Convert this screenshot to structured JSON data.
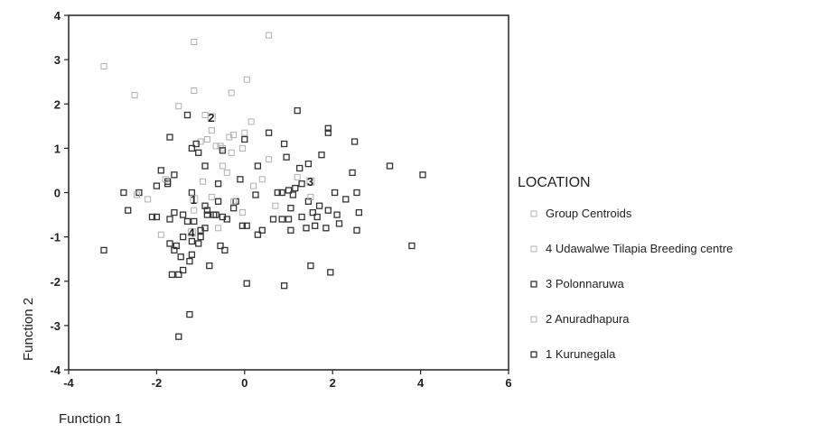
{
  "chart_data": {
    "type": "scatter",
    "xlabel": "Function 1",
    "ylabel": "Function 2",
    "xlim": [
      -4,
      6
    ],
    "ylim": [
      -4,
      4
    ],
    "xticks": [
      "-4",
      "-2",
      "0",
      "2",
      "4",
      "6"
    ],
    "yticks": [
      "4",
      "3",
      "2",
      "1",
      "0",
      "-1",
      "-2",
      "-3",
      "-4"
    ],
    "legend": {
      "title": "LOCATION",
      "placement": "right",
      "entries": [
        {
          "label": "Group Centroids",
          "key": "centroids"
        },
        {
          "label": "4 Udawalwe Tilapia Breeding centre",
          "key": "4"
        },
        {
          "label": "3 Polonnaruwa",
          "key": "3"
        },
        {
          "label": "2 Anuradhapura",
          "key": "2"
        },
        {
          "label": "1 Kurunegala",
          "key": "1"
        }
      ]
    },
    "colors": {
      "dark": "#333333",
      "light": "#b0b0b0",
      "axis": "#222222"
    },
    "centroids": [
      {
        "group": "1",
        "x": -1.15,
        "y": -0.15
      },
      {
        "group": "2",
        "x": -0.75,
        "y": 1.7
      },
      {
        "group": "3",
        "x": 1.5,
        "y": 0.25
      },
      {
        "group": "4",
        "x": -1.2,
        "y": -0.9
      }
    ],
    "series": [
      {
        "group": "2",
        "points": [
          [
            -3.2,
            2.85
          ],
          [
            -2.5,
            2.2
          ],
          [
            -1.15,
            3.4
          ],
          [
            0.55,
            3.55
          ],
          [
            0.05,
            2.55
          ],
          [
            -1.15,
            2.3
          ],
          [
            -0.3,
            2.25
          ],
          [
            -1.5,
            1.95
          ],
          [
            0.15,
            1.6
          ],
          [
            -0.55,
            1.05
          ],
          [
            -0.85,
            1.2
          ],
          [
            0.0,
            1.35
          ],
          [
            -0.25,
            1.3
          ],
          [
            -1.0,
            1.15
          ],
          [
            -0.5,
            1.0
          ],
          [
            -0.35,
            1.25
          ],
          [
            -0.75,
            1.4
          ],
          [
            -0.65,
            1.05
          ],
          [
            -0.9,
            1.75
          ]
        ]
      },
      {
        "group": "1",
        "points": [
          [
            -3.2,
            -1.3
          ],
          [
            -2.0,
            -0.55
          ],
          [
            -1.7,
            -0.6
          ],
          [
            -1.6,
            -1.3
          ],
          [
            -1.4,
            -1.0
          ],
          [
            -1.2,
            -1.4
          ],
          [
            -1.4,
            -0.5
          ],
          [
            -1.05,
            -1.15
          ],
          [
            -0.8,
            -1.65
          ],
          [
            -0.9,
            -0.3
          ],
          [
            -0.65,
            -0.5
          ],
          [
            -1.5,
            -1.85
          ],
          [
            -1.65,
            -1.85
          ],
          [
            -1.25,
            -1.55
          ],
          [
            -1.15,
            -0.65
          ],
          [
            -1.5,
            -3.25
          ],
          [
            -1.25,
            -2.75
          ],
          [
            -0.45,
            -1.3
          ],
          [
            -1.2,
            -1.1
          ],
          [
            -1.0,
            -0.85
          ],
          [
            -0.55,
            -1.2
          ],
          [
            -1.4,
            -1.75
          ],
          [
            -1.7,
            -1.15
          ],
          [
            -1.55,
            -1.2
          ],
          [
            -0.05,
            -0.75
          ],
          [
            -0.85,
            -0.4
          ],
          [
            -2.1,
            -0.55
          ],
          [
            -1.3,
            -0.65
          ],
          [
            -0.4,
            -0.6
          ],
          [
            -1.6,
            -0.45
          ],
          [
            -1.0,
            -1.0
          ],
          [
            -0.7,
            -0.5
          ],
          [
            -1.45,
            -1.45
          ],
          [
            -0.9,
            -0.8
          ]
        ]
      },
      {
        "group": "3",
        "points": [
          [
            -1.7,
            1.25
          ],
          [
            -1.3,
            1.75
          ],
          [
            -1.2,
            1.0
          ],
          [
            -1.05,
            0.9
          ],
          [
            -1.1,
            1.1
          ],
          [
            -0.9,
            0.6
          ],
          [
            -0.5,
            0.95
          ],
          [
            0.0,
            1.2
          ],
          [
            0.55,
            1.35
          ],
          [
            0.9,
            1.1
          ],
          [
            1.2,
            1.85
          ],
          [
            1.9,
            1.45
          ],
          [
            1.9,
            1.35
          ],
          [
            2.5,
            1.15
          ],
          [
            0.95,
            0.8
          ],
          [
            1.25,
            0.55
          ],
          [
            1.45,
            0.65
          ],
          [
            1.75,
            0.85
          ],
          [
            2.45,
            0.45
          ],
          [
            3.3,
            0.6
          ],
          [
            4.05,
            0.4
          ],
          [
            -1.9,
            0.5
          ],
          [
            -1.75,
            0.25
          ],
          [
            -1.6,
            0.4
          ],
          [
            -1.2,
            0.0
          ],
          [
            -0.6,
            0.2
          ],
          [
            -0.1,
            0.3
          ],
          [
            0.25,
            -0.05
          ],
          [
            0.85,
            0.0
          ],
          [
            1.15,
            0.1
          ],
          [
            1.3,
            0.2
          ],
          [
            1.1,
            -0.05
          ],
          [
            1.45,
            -0.2
          ],
          [
            1.7,
            -0.3
          ],
          [
            2.05,
            0.0
          ],
          [
            2.3,
            -0.15
          ],
          [
            2.55,
            0.0
          ],
          [
            2.6,
            -0.45
          ],
          [
            2.1,
            -0.5
          ],
          [
            1.9,
            -0.4
          ],
          [
            1.65,
            -0.55
          ],
          [
            1.05,
            -0.35
          ],
          [
            1.0,
            -0.6
          ],
          [
            1.3,
            -0.55
          ],
          [
            1.6,
            -0.75
          ],
          [
            1.85,
            -0.8
          ],
          [
            2.15,
            -0.7
          ],
          [
            2.55,
            -0.85
          ],
          [
            0.65,
            -0.6
          ],
          [
            0.4,
            -0.85
          ],
          [
            -0.5,
            -0.55
          ],
          [
            -0.25,
            -0.35
          ],
          [
            -0.6,
            -0.2
          ],
          [
            -0.85,
            -0.5
          ],
          [
            0.05,
            -0.75
          ],
          [
            0.3,
            -0.95
          ],
          [
            0.05,
            -2.05
          ],
          [
            0.9,
            -2.1
          ],
          [
            1.5,
            -1.65
          ],
          [
            1.95,
            -1.8
          ],
          [
            3.8,
            -1.2
          ],
          [
            0.85,
            -0.6
          ],
          [
            1.05,
            -0.85
          ],
          [
            1.55,
            -0.45
          ],
          [
            1.4,
            -0.8
          ],
          [
            -2.65,
            -0.4
          ],
          [
            -2.75,
            0.0
          ],
          [
            -2.4,
            0.0
          ],
          [
            -2.0,
            0.15
          ],
          [
            -1.75,
            0.2
          ],
          [
            1.0,
            0.05
          ],
          [
            0.75,
            0.0
          ],
          [
            -0.2,
            -0.2
          ],
          [
            0.3,
            0.6
          ]
        ]
      },
      {
        "group": "4",
        "points": [
          [
            -2.45,
            -0.05
          ],
          [
            -2.2,
            -0.15
          ],
          [
            -1.8,
            0.3
          ],
          [
            -0.5,
            0.6
          ],
          [
            -0.3,
            0.9
          ],
          [
            -0.05,
            1.0
          ],
          [
            0.4,
            0.3
          ],
          [
            -0.25,
            -0.2
          ],
          [
            -0.6,
            -0.8
          ],
          [
            -1.9,
            -0.95
          ],
          [
            -1.15,
            -0.4
          ],
          [
            -0.75,
            -0.1
          ],
          [
            0.7,
            -0.3
          ],
          [
            1.5,
            -0.1
          ],
          [
            1.2,
            0.35
          ],
          [
            -0.4,
            0.45
          ],
          [
            -0.95,
            0.25
          ],
          [
            0.2,
            0.15
          ],
          [
            -0.05,
            -0.45
          ],
          [
            0.55,
            0.75
          ]
        ]
      }
    ]
  }
}
